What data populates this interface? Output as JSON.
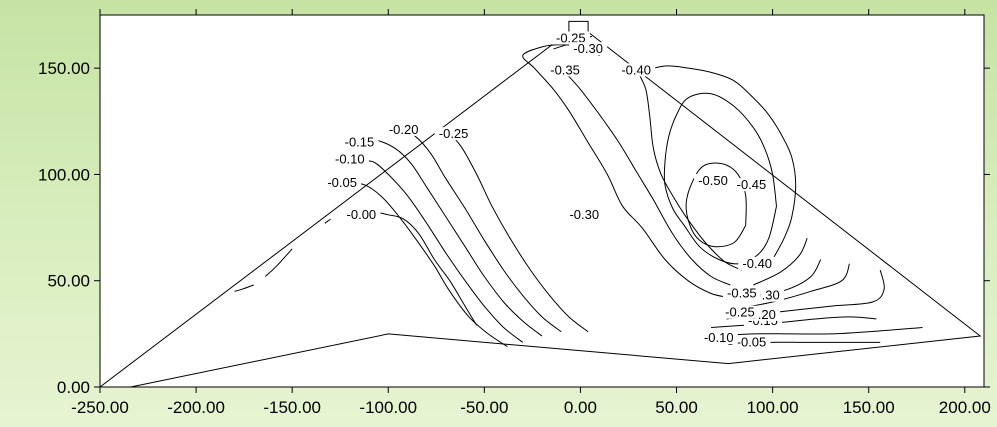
{
  "chart_data": {
    "type": "contour",
    "title": "",
    "xlabel": "",
    "ylabel": "",
    "xlim": [
      -250,
      210
    ],
    "ylim": [
      0,
      175
    ],
    "xticks": [
      -250,
      -200,
      -150,
      -100,
      -50,
      0,
      50,
      100,
      150,
      200
    ],
    "yticks": [
      0,
      50,
      100,
      150
    ],
    "xtick_labels": [
      "-250.00",
      "-200.00",
      "-150.00",
      "-100.00",
      "-50.00",
      "0.00",
      "50.00",
      "100.00",
      "150.00",
      "200.00"
    ],
    "ytick_labels": [
      "0.00",
      "50.00",
      "100.00",
      "150.00"
    ],
    "grid": false,
    "outline": {
      "polygon": [
        [
          -250,
          0
        ],
        [
          -6,
          167
        ],
        [
          -6,
          172
        ],
        [
          4,
          172
        ],
        [
          4,
          167
        ],
        [
          208,
          24
        ],
        [
          77,
          11
        ],
        [
          -100,
          25
        ],
        [
          -234,
          0
        ]
      ]
    },
    "levels": [
      {
        "value": -0.0,
        "label": "-0.00",
        "lines": [
          [
            [
              -54,
              29
            ],
            [
              -60,
              38
            ],
            [
              -68,
              50
            ],
            [
              -76,
              60
            ],
            [
              -84,
              72
            ],
            [
              -92,
              79
            ],
            [
              -100,
              81
            ],
            [
              -107,
              82
            ],
            [
              -115,
              80
            ]
          ],
          [
            [
              -180,
              45
            ],
            [
              -176,
              46
            ],
            [
              -170,
              48
            ]
          ],
          [
            [
              -164,
              52
            ],
            [
              -158,
              57
            ],
            [
              -150,
              65
            ]
          ],
          [
            [
              -133,
              77
            ],
            [
              -130,
              79
            ]
          ]
        ],
        "label_at": [
          -114,
          80
        ]
      },
      {
        "value": -0.05,
        "label": "-0.05",
        "lines": [
          [
            [
              -38,
              19
            ],
            [
              -48,
              25
            ],
            [
              -58,
              33
            ],
            [
              -68,
              45
            ],
            [
              -76,
              57
            ],
            [
              -86,
              70
            ],
            [
              -96,
              82
            ],
            [
              -104,
              90
            ],
            [
              -112,
              95
            ],
            [
              -120,
              96
            ],
            [
              -127,
              95
            ]
          ],
          [
            [
              77,
              20
            ],
            [
              97,
              21
            ],
            [
              117,
              21
            ],
            [
              137,
              21
            ],
            [
              156,
              21
            ]
          ]
        ],
        "label_at": [
          -124,
          95
        ],
        "label_at2": [
          89,
          20
        ]
      },
      {
        "value": -0.1,
        "label": "-0.10",
        "lines": [
          [
            [
              -30,
              21
            ],
            [
              -40,
              28
            ],
            [
              -50,
              38
            ],
            [
              -60,
              50
            ],
            [
              -70,
              63
            ],
            [
              -80,
              77
            ],
            [
              -90,
              90
            ],
            [
              -100,
              100
            ],
            [
              -108,
              106
            ],
            [
              -116,
              106
            ],
            [
              -122,
              106
            ]
          ],
          [
            [
              70,
              24
            ],
            [
              90,
              25
            ],
            [
              110,
              25
            ],
            [
              130,
              25
            ],
            [
              150,
              26
            ],
            [
              178,
              28
            ]
          ]
        ],
        "label_at": [
          -120,
          106
        ],
        "label_at2": [
          72,
          22
        ]
      },
      {
        "value": -0.15,
        "label": "-0.15",
        "lines": [
          [
            [
              -20,
              24
            ],
            [
              -30,
              31
            ],
            [
              -40,
              40
            ],
            [
              -50,
              52
            ],
            [
              -60,
              66
            ],
            [
              -70,
              80
            ],
            [
              -80,
              94
            ],
            [
              -88,
              105
            ],
            [
              -96,
              112
            ],
            [
              -106,
              116
            ],
            [
              -116,
              116
            ]
          ],
          [
            [
              68,
              28
            ],
            [
              100,
              30
            ],
            [
              122,
              32
            ],
            [
              140,
              33
            ],
            [
              154,
              32
            ]
          ]
        ],
        "label_at": [
          -115,
          114
        ],
        "label_at2": [
          95,
          30
        ]
      },
      {
        "value": -0.2,
        "label": "-0.20",
        "lines": [
          [
            [
              -10,
              26
            ],
            [
              -20,
              33
            ],
            [
              -30,
              43
            ],
            [
              -40,
              55
            ],
            [
              -50,
              69
            ],
            [
              -60,
              84
            ],
            [
              -70,
              98
            ],
            [
              -78,
              110
            ],
            [
              -86,
              118
            ],
            [
              -93,
              121
            ]
          ],
          [
            [
              76,
              32
            ],
            [
              100,
              35
            ],
            [
              130,
              38
            ],
            [
              152,
              40
            ],
            [
              158,
              46
            ],
            [
              156,
              55
            ]
          ]
        ],
        "label_at": [
          -92,
          120
        ],
        "label_at2": [
          94,
          33
        ]
      },
      {
        "value": -0.25,
        "label": "-0.25",
        "lines": [
          [
            [
              4,
              26
            ],
            [
              -6,
              33
            ],
            [
              -16,
              43
            ],
            [
              -26,
              55
            ],
            [
              -36,
              69
            ],
            [
              -46,
              85
            ],
            [
              -54,
              100
            ],
            [
              -62,
              113
            ],
            [
              -70,
              121
            ]
          ],
          [
            [
              76,
              36
            ],
            [
              100,
              40
            ],
            [
              120,
              45
            ],
            [
              136,
              50
            ],
            [
              140,
              58
            ]
          ],
          [
            [
              -14,
              159
            ],
            [
              -4,
              162
            ],
            [
              6,
              165
            ]
          ]
        ],
        "label_at": [
          -66,
          118
        ],
        "label_at2": [
          83,
          34
        ],
        "label_at3": [
          -5,
          163
        ]
      },
      {
        "value": -0.3,
        "label": "-0.30",
        "lines": [
          [
            [
              78,
              42
            ],
            [
              68,
              44
            ],
            [
              56,
              50
            ],
            [
              44,
              60
            ],
            [
              32,
              75
            ],
            [
              22,
              85
            ],
            [
              14,
              100
            ],
            [
              4,
              115
            ],
            [
              -6,
              130
            ],
            [
              -14,
              140
            ],
            [
              -24,
              150
            ],
            [
              -30,
              156
            ],
            [
              -20,
              160
            ],
            [
              -10,
              161
            ],
            [
              0,
              160
            ],
            [
              10,
              156
            ]
          ],
          [
            [
              90,
              42
            ],
            [
              108,
              46
            ],
            [
              120,
              52
            ],
            [
              125,
              60
            ]
          ]
        ],
        "label_at": [
          2,
          80
        ],
        "label_at2": [
          96,
          42
        ],
        "label_at3": [
          4,
          158
        ]
      },
      {
        "value": -0.35,
        "label": "-0.35",
        "lines": [
          [
            [
              78,
              48
            ],
            [
              68,
              52
            ],
            [
              58,
              60
            ],
            [
              48,
              72
            ],
            [
              38,
              88
            ],
            [
              30,
              100
            ],
            [
              20,
              115
            ],
            [
              10,
              128
            ],
            [
              0,
              140
            ],
            [
              -8,
              148
            ],
            [
              -12,
              152
            ]
          ],
          [
            [
              90,
              48
            ],
            [
              104,
              54
            ],
            [
              114,
              62
            ],
            [
              118,
              70
            ]
          ],
          [
            [
              -10,
              150
            ],
            [
              -5,
              152
            ]
          ]
        ],
        "label_at": [
          -8,
          148
        ],
        "label_at2": [
          84,
          43
        ]
      },
      {
        "value": -0.4,
        "label": "-0.40",
        "lines": [
          [
            [
              100,
              60
            ],
            [
              106,
              70
            ],
            [
              110,
              80
            ],
            [
              112,
              95
            ],
            [
              110,
              108
            ],
            [
              105,
              118
            ],
            [
              98,
              128
            ],
            [
              90,
              136
            ],
            [
              80,
              144
            ],
            [
              68,
              148
            ],
            [
              56,
              150
            ],
            [
              44,
              151
            ],
            [
              30,
              148
            ]
          ],
          [
            [
              84,
              55
            ],
            [
              75,
              59
            ],
            [
              65,
              68
            ],
            [
              55,
              80
            ],
            [
              48,
              90
            ],
            [
              42,
              100
            ],
            [
              38,
              112
            ],
            [
              36,
              128
            ],
            [
              34,
              140
            ],
            [
              30,
              148
            ]
          ]
        ],
        "label_at": [
          29,
          148
        ],
        "label_at2": [
          92,
          57
        ]
      },
      {
        "value": -0.45,
        "label": "-0.45",
        "lines": [
          [
            [
              102,
              85
            ],
            [
              100,
              100
            ],
            [
              96,
              112
            ],
            [
              90,
              122
            ],
            [
              80,
              132
            ],
            [
              68,
              138
            ],
            [
              56,
              136
            ],
            [
              50,
              128
            ],
            [
              46,
              118
            ],
            [
              44,
              106
            ],
            [
              44,
              95
            ],
            [
              48,
              84
            ],
            [
              54,
              76
            ],
            [
              62,
              66
            ],
            [
              72,
              60
            ],
            [
              82,
              58
            ],
            [
              92,
              62
            ],
            [
              98,
              70
            ],
            [
              102,
              85
            ]
          ]
        ],
        "label_at": [
          89,
          94
        ]
      },
      {
        "value": -0.5,
        "label": "-0.50",
        "lines": [
          [
            [
              86,
              76
            ],
            [
              86,
              90
            ],
            [
              82,
              100
            ],
            [
              74,
              105
            ],
            [
              64,
              104
            ],
            [
              58,
              96
            ],
            [
              55,
              86
            ],
            [
              57,
              76
            ],
            [
              62,
              69
            ],
            [
              70,
              66
            ],
            [
              80,
              68
            ],
            [
              86,
              76
            ]
          ]
        ],
        "label_at": [
          69,
          96
        ]
      }
    ]
  }
}
